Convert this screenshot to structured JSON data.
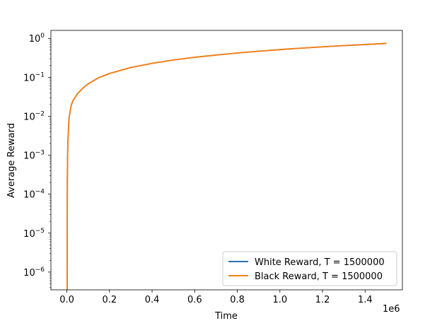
{
  "chart_data": {
    "type": "line",
    "xlabel": "Time",
    "ylabel": "Average Reward",
    "x_offset_label": "1e6",
    "xlim": [
      -75000,
      1575000
    ],
    "ylim": [
      3.5e-07,
      1.6
    ],
    "yscale": "log",
    "grid": false,
    "legend_position": "lower-right",
    "x_ticks": [
      {
        "value": 0,
        "label": "0.0"
      },
      {
        "value": 200000,
        "label": "0.2"
      },
      {
        "value": 400000,
        "label": "0.4"
      },
      {
        "value": 600000,
        "label": "0.6"
      },
      {
        "value": 800000,
        "label": "0.8"
      },
      {
        "value": 1000000,
        "label": "1.0"
      },
      {
        "value": 1200000,
        "label": "1.2"
      },
      {
        "value": 1400000,
        "label": "1.4"
      }
    ],
    "y_ticks": [
      {
        "value": 1e-06,
        "base": "10",
        "exp": "−6"
      },
      {
        "value": 1e-05,
        "base": "10",
        "exp": "−5"
      },
      {
        "value": 0.0001,
        "base": "10",
        "exp": "−4"
      },
      {
        "value": 0.001,
        "base": "10",
        "exp": "−3"
      },
      {
        "value": 0.01,
        "base": "10",
        "exp": "−2"
      },
      {
        "value": 0.1,
        "base": "10",
        "exp": "−1"
      },
      {
        "value": 1,
        "base": "10",
        "exp": "0"
      }
    ],
    "series": [
      {
        "name": "White Reward, T = 1500000",
        "color": "#1f77b4",
        "x": [
          1000,
          2000,
          3000,
          5000,
          10000,
          20000,
          30000,
          50000,
          75000,
          100000,
          150000,
          200000,
          300000,
          400000,
          500000,
          600000,
          700000,
          800000,
          900000,
          1000000,
          1100000,
          1200000,
          1300000,
          1400000,
          1500000
        ],
        "y": [
          3e-07,
          0.0002,
          0.0008,
          0.0025,
          0.009,
          0.019,
          0.026,
          0.038,
          0.053,
          0.068,
          0.098,
          0.125,
          0.178,
          0.228,
          0.278,
          0.326,
          0.373,
          0.42,
          0.467,
          0.514,
          0.56,
          0.606,
          0.651,
          0.696,
          0.741
        ]
      },
      {
        "name": "Black Reward, T = 1500000",
        "color": "#ff7f0e",
        "x": [
          1000,
          2000,
          3000,
          5000,
          10000,
          20000,
          30000,
          50000,
          75000,
          100000,
          150000,
          200000,
          300000,
          400000,
          500000,
          600000,
          700000,
          800000,
          900000,
          1000000,
          1100000,
          1200000,
          1300000,
          1400000,
          1500000
        ],
        "y": [
          3e-07,
          0.0002,
          0.0008,
          0.0025,
          0.009,
          0.019,
          0.026,
          0.038,
          0.053,
          0.068,
          0.098,
          0.125,
          0.178,
          0.228,
          0.278,
          0.326,
          0.373,
          0.42,
          0.467,
          0.514,
          0.56,
          0.606,
          0.651,
          0.696,
          0.741
        ]
      }
    ]
  }
}
